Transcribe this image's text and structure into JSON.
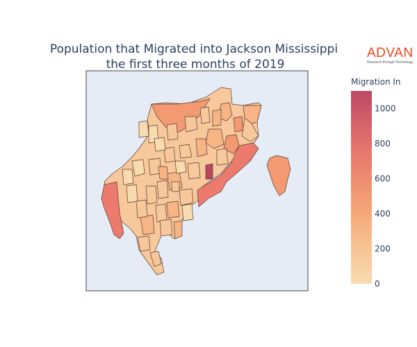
{
  "title": {
    "line1": "Population that Migrated into Jackson Mississippi",
    "line2": "the first three months of 2019"
  },
  "logo": {
    "brand": "ADVAN",
    "tagline": "Research through Technology"
  },
  "colorbar": {
    "title": "Migration In",
    "min": 0,
    "max": 1100,
    "ticks": [
      0,
      200,
      400,
      600,
      800,
      1000
    ],
    "colors": [
      "#f9dbb0",
      "#f7b585",
      "#f39a73",
      "#ec7b6e",
      "#d9596b",
      "#b94762"
    ]
  },
  "map": {
    "background": "#e5ecf6",
    "border_color": "#444444",
    "region_stroke": "#5a3a2e"
  }
}
